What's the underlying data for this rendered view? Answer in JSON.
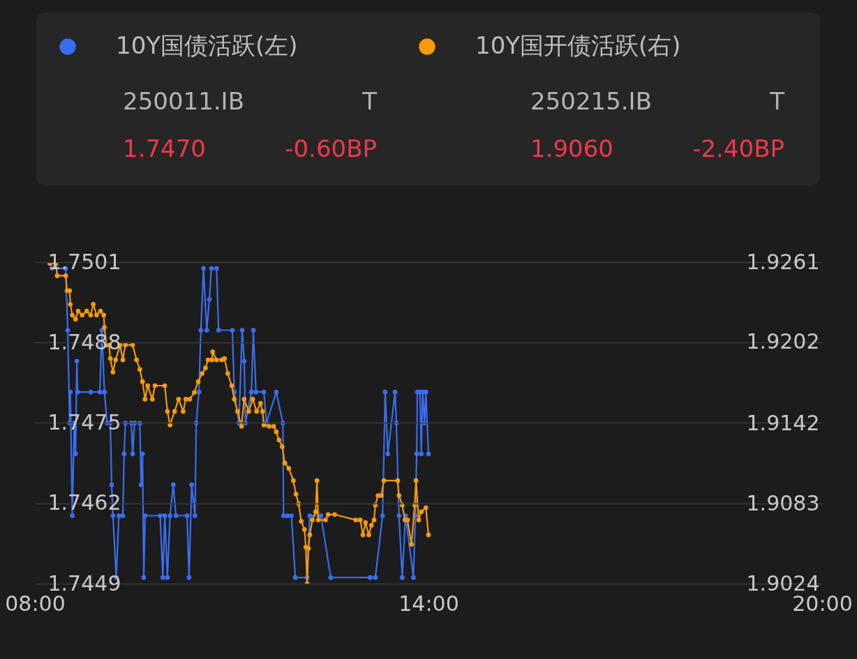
{
  "chart_data": {
    "type": "line",
    "xlim": [
      8,
      20
    ],
    "xticks": [
      {
        "value": 8,
        "label": "08:00"
      },
      {
        "value": 14,
        "label": "14:00"
      },
      {
        "value": 20,
        "label": "20:00"
      }
    ],
    "ylim": [
      1.7449,
      1.7501
    ],
    "yticks": [
      1.7449,
      1.7462,
      1.7475,
      1.7488,
      1.7501
    ],
    "y2lim": [
      1.9024,
      1.9261
    ],
    "y2ticks": [
      1.9024,
      1.9083,
      1.9142,
      1.9202,
      1.9261
    ],
    "grid": "y",
    "legend": "top left",
    "marker": "circle",
    "annotations": [
      "250011.IB",
      "T",
      "1.7470",
      "-0.60BP",
      "250215.IB",
      "T",
      "1.9060",
      "-2.40BP"
    ],
    "series": [
      {
        "name": "10Y国债活跃(左)",
        "color": "#3a6df0",
        "x": [
          8.26,
          8.47,
          8.5,
          8.53,
          8.54,
          8.57,
          8.6,
          8.62,
          8.64,
          8.65,
          8.85,
          8.99,
          9.02,
          9.06,
          9.1,
          9.15,
          9.17,
          9.19,
          9.24,
          9.28,
          9.34,
          9.36,
          9.38,
          9.47,
          9.49,
          9.52,
          9.6,
          9.62,
          9.64,
          9.66,
          9.68,
          9.91,
          9.95,
          9.98,
          10.02,
          10.06,
          10.11,
          10.15,
          10.32,
          10.35,
          10.39,
          10.44,
          10.46,
          10.5,
          10.53,
          10.57,
          10.62,
          10.66,
          10.69,
          10.77,
          10.8,
          11.01,
          11.04,
          11.11,
          11.16,
          11.19,
          11.21,
          11.3,
          11.33,
          11.37,
          11.49,
          11.53,
          11.68,
          11.78,
          11.79,
          11.85,
          11.91,
          11.97,
          12.15,
          12.19,
          12.36,
          12.51,
          13.11,
          13.19,
          13.3,
          13.34,
          13.38,
          13.49,
          13.51,
          13.55,
          13.6,
          13.65,
          13.77,
          13.8,
          13.82,
          13.83,
          13.87,
          13.89,
          13.91,
          13.94,
          13.96,
          14.0
        ],
        "values": [
          1.75,
          1.75,
          1.749,
          1.7475,
          1.748,
          1.746,
          1.7475,
          1.747,
          1.7485,
          1.748,
          1.748,
          1.748,
          1.749,
          1.748,
          1.7475,
          1.7475,
          1.7465,
          1.746,
          1.745,
          1.746,
          1.746,
          1.747,
          1.7475,
          1.7475,
          1.747,
          1.7475,
          1.7475,
          1.7465,
          1.747,
          1.745,
          1.746,
          1.746,
          1.745,
          1.746,
          1.745,
          1.746,
          1.7465,
          1.746,
          1.746,
          1.745,
          1.7465,
          1.746,
          1.7475,
          1.748,
          1.749,
          1.75,
          1.749,
          1.7495,
          1.75,
          1.75,
          1.749,
          1.749,
          1.748,
          1.7475,
          1.749,
          1.7485,
          1.7475,
          1.748,
          1.749,
          1.748,
          1.748,
          1.7475,
          1.748,
          1.7475,
          1.746,
          1.746,
          1.746,
          1.745,
          1.745,
          1.746,
          1.746,
          1.745,
          1.745,
          1.745,
          1.746,
          1.748,
          1.747,
          1.748,
          1.7475,
          1.746,
          1.745,
          1.746,
          1.745,
          1.746,
          1.747,
          1.748,
          1.748,
          1.747,
          1.748,
          1.7475,
          1.748,
          1.747
        ]
      },
      {
        "name": "10Y国开债活跃(右)",
        "color": "#f59a0a",
        "axis": "y2",
        "x": [
          8.23,
          8.32,
          8.34,
          8.47,
          8.49,
          8.53,
          8.54,
          8.57,
          8.62,
          8.66,
          8.72,
          8.79,
          8.85,
          8.89,
          8.94,
          9.0,
          9.05,
          9.06,
          9.09,
          9.13,
          9.15,
          9.19,
          9.23,
          9.3,
          9.34,
          9.38,
          9.49,
          9.55,
          9.6,
          9.64,
          9.68,
          9.72,
          9.79,
          9.83,
          9.98,
          10.02,
          10.06,
          10.13,
          10.19,
          10.26,
          10.3,
          10.36,
          10.43,
          10.49,
          10.55,
          10.6,
          10.64,
          10.7,
          10.71,
          10.77,
          10.85,
          10.89,
          10.94,
          11.0,
          11.04,
          11.09,
          11.15,
          11.19,
          11.26,
          11.32,
          11.38,
          11.44,
          11.47,
          11.49,
          11.57,
          11.64,
          11.68,
          11.72,
          11.77,
          11.81,
          11.87,
          11.94,
          11.98,
          12.02,
          12.06,
          12.11,
          12.13,
          12.15,
          12.17,
          12.19,
          12.23,
          12.28,
          12.3,
          12.32,
          12.43,
          12.47,
          12.57,
          12.89,
          12.96,
          13.0,
          13.04,
          13.09,
          13.13,
          13.17,
          13.19,
          13.23,
          13.28,
          13.32,
          13.53,
          13.55,
          13.6,
          13.64,
          13.68,
          13.74,
          13.79,
          13.81,
          13.85,
          13.89,
          13.96,
          14.0
        ],
        "values": [
          1.926,
          1.926,
          1.9251,
          1.9251,
          1.924,
          1.924,
          1.923,
          1.9222,
          1.9219,
          1.9225,
          1.9222,
          1.9225,
          1.9222,
          1.923,
          1.9222,
          1.9225,
          1.9222,
          1.9213,
          1.92,
          1.92,
          1.919,
          1.918,
          1.9189,
          1.92,
          1.9189,
          1.92,
          1.92,
          1.9189,
          1.9182,
          1.9173,
          1.916,
          1.917,
          1.916,
          1.917,
          1.917,
          1.9151,
          1.9141,
          1.9151,
          1.916,
          1.9151,
          1.916,
          1.916,
          1.9165,
          1.9173,
          1.9179,
          1.9183,
          1.9189,
          1.9189,
          1.9195,
          1.9189,
          1.9189,
          1.919,
          1.9179,
          1.917,
          1.916,
          1.9151,
          1.914,
          1.916,
          1.9151,
          1.916,
          1.9151,
          1.9157,
          1.9151,
          1.9141,
          1.914,
          1.914,
          1.9136,
          1.913,
          1.9125,
          1.9113,
          1.9109,
          1.91,
          1.909,
          1.9083,
          1.907,
          1.9064,
          1.9051,
          1.9024,
          1.905,
          1.906,
          1.9071,
          1.9077,
          1.91,
          1.9071,
          1.9071,
          1.9075,
          1.9075,
          1.9071,
          1.9071,
          1.906,
          1.9069,
          1.906,
          1.9067,
          1.9071,
          1.9082,
          1.9089,
          1.9089,
          1.91,
          1.91,
          1.9089,
          1.9082,
          1.9071,
          1.9071,
          1.9053,
          1.9082,
          1.91,
          1.9071,
          1.9077,
          1.908,
          1.906
        ]
      }
    ]
  }
}
